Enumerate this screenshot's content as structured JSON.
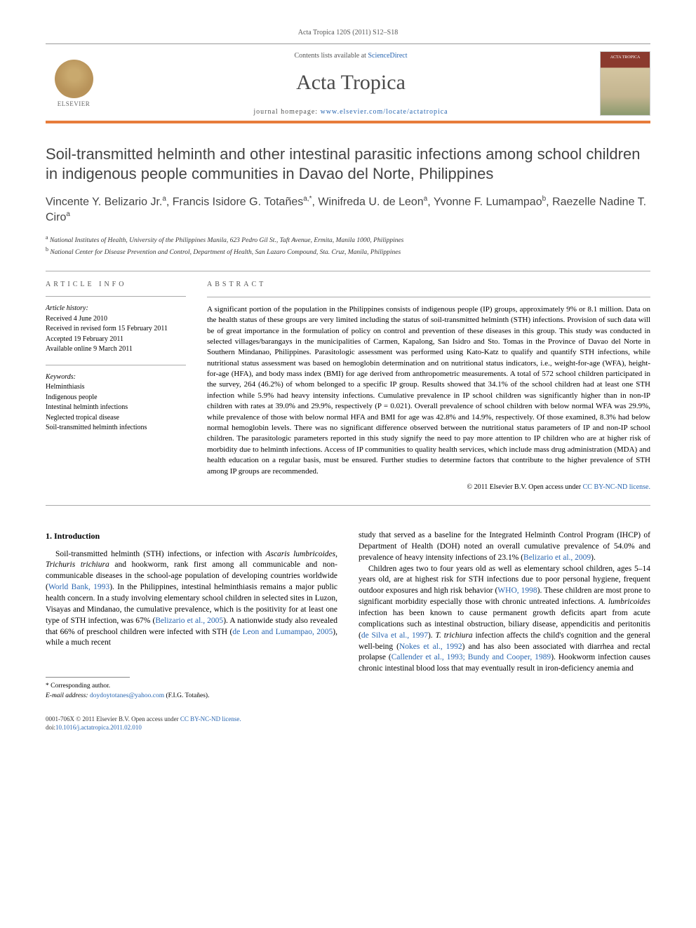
{
  "header": {
    "journal_id": "Acta Tropica 120S (2011) S12–S18",
    "contents_prefix": "Contents lists available at ",
    "contents_link": "ScienceDirect",
    "journal_title": "Acta Tropica",
    "homepage_prefix": "journal homepage: ",
    "homepage_url": "www.elsevier.com/locate/actatropica",
    "elsevier_label": "ELSEVIER",
    "cover_label": "ACTA TROPICA"
  },
  "article": {
    "title": "Soil-transmitted helminth and other intestinal parasitic infections among school children in indigenous people communities in Davao del Norte, Philippines",
    "authors_html": "Vincente Y. Belizario Jr.<sup>a</sup>, Francis Isidore G. Totañes<sup>a,*</sup>, Winifreda U. de Leon<sup>a</sup>, Yvonne F. Lumampao<sup>b</sup>, Raezelle Nadine T. Ciro<sup>a</sup>",
    "affiliations": [
      {
        "sup": "a",
        "text": "National Institutes of Health, University of the Philippines Manila, 623 Pedro Gil St., Taft Avenue, Ermita, Manila 1000, Philippines"
      },
      {
        "sup": "b",
        "text": "National Center for Disease Prevention and Control, Department of Health, San Lazaro Compound, Sta. Cruz, Manila, Philippines"
      }
    ]
  },
  "info": {
    "section_label": "article info",
    "history_label": "Article history:",
    "history": [
      "Received 4 June 2010",
      "Received in revised form 15 February 2011",
      "Accepted 19 February 2011",
      "Available online 9 March 2011"
    ],
    "keywords_label": "Keywords:",
    "keywords": [
      "Helminthiasis",
      "Indigenous people",
      "Intestinal helminth infections",
      "Neglected tropical disease",
      "Soil-transmitted helminth infections"
    ]
  },
  "abstract": {
    "section_label": "abstract",
    "text": "A significant portion of the population in the Philippines consists of indigenous people (IP) groups, approximately 9% or 8.1 million. Data on the health status of these groups are very limited including the status of soil-transmitted helminth (STH) infections. Provision of such data will be of great importance in the formulation of policy on control and prevention of these diseases in this group. This study was conducted in selected villages/barangays in the municipalities of Carmen, Kapalong, San Isidro and Sto. Tomas in the Province of Davao del Norte in Southern Mindanao, Philippines. Parasitologic assessment was performed using Kato-Katz to qualify and quantify STH infections, while nutritional status assessment was based on hemoglobin determination and on nutritional status indicators, i.e., weight-for-age (WFA), height-for-age (HFA), and body mass index (BMI) for age derived from anthropometric measurements. A total of 572 school children participated in the survey, 264 (46.2%) of whom belonged to a specific IP group. Results showed that 34.1% of the school children had at least one STH infection while 5.9% had heavy intensity infections. Cumulative prevalence in IP school children was significantly higher than in non-IP children with rates at 39.0% and 29.9%, respectively (P = 0.021). Overall prevalence of school children with below normal WFA was 29.9%, while prevalence of those with below normal HFA and BMI for age was 42.8% and 14.9%, respectively. Of those examined, 8.3% had below normal hemoglobin levels. There was no significant difference observed between the nutritional status parameters of IP and non-IP school children. The parasitologic parameters reported in this study signify the need to pay more attention to IP children who are at higher risk of morbidity due to helminth infections. Access of IP communities to quality health services, which include mass drug administration (MDA) and health education on a regular basis, must be ensured. Further studies to determine factors that contribute to the higher prevalence of STH among IP groups are recommended.",
    "copyright_prefix": "© 2011 Elsevier B.V. ",
    "copyright_open": "Open access under ",
    "copyright_license": "CC BY-NC-ND license."
  },
  "body": {
    "heading": "1. Introduction",
    "left_para": "Soil-transmitted helminth (STH) infections, or infection with <span class=\"species\">Ascaris lumbricoides</span>, <span class=\"species\">Trichuris trichiura</span> and hookworm, rank first among all communicable and non-communicable diseases in the school-age population of developing countries worldwide (<a href=\"#\">World Bank, 1993</a>). In the Philippines, intestinal helminthiasis remains a major public health concern. In a study involving elementary school children in selected sites in Luzon, Visayas and Mindanao, the cumulative prevalence, which is the positivity for at least one type of STH infection, was 67% (<a href=\"#\">Belizario et al., 2005</a>). A nationwide study also revealed that 66% of preschool children were infected with STH (<a href=\"#\">de Leon and Lumampao, 2005</a>), while a much recent",
    "right_para1": "study that served as a baseline for the Integrated Helminth Control Program (IHCP) of Department of Health (DOH) noted an overall cumulative prevalence of 54.0% and prevalence of heavy intensity infections of 23.1% (<a href=\"#\">Belizario et al., 2009</a>).",
    "right_para2": "Children ages two to four years old as well as elementary school children, ages 5–14 years old, are at highest risk for STH infections due to poor personal hygiene, frequent outdoor exposures and high risk behavior (<a href=\"#\">WHO, 1998</a>). These children are most prone to significant morbidity especially those with chronic untreated infections. <span class=\"species\">A. lumbricoides</span> infection has been known to cause permanent growth deficits apart from acute complications such as intestinal obstruction, biliary disease, appendicitis and peritonitis (<a href=\"#\">de Silva et al., 1997</a>). <span class=\"species\">T. trichiura</span> infection affects the child's cognition and the general well-being (<a href=\"#\">Nokes et al., 1992</a>) and has also been associated with diarrhea and rectal prolapse (<a href=\"#\">Callender et al., 1993; Bundy and Cooper, 1989</a>). Hookworm infection causes chronic intestinal blood loss that may eventually result in iron-deficiency anemia and"
  },
  "corresponding": {
    "label": "* Corresponding author.",
    "email_label": "E-mail address: ",
    "email": "doydoytotanes@yahoo.com",
    "email_name": " (F.I.G. Totañes)."
  },
  "footer": {
    "line1_prefix": "0001-706X  © 2011 Elsevier B.V. ",
    "line1_open": "Open access under ",
    "line1_license": "CC BY-NC-ND license.",
    "doi_label": "doi:",
    "doi": "10.1016/j.actatropica.2011.02.010"
  },
  "colors": {
    "accent_orange": "#e77c3a",
    "link_blue": "#2865b0",
    "text_gray": "#555"
  }
}
